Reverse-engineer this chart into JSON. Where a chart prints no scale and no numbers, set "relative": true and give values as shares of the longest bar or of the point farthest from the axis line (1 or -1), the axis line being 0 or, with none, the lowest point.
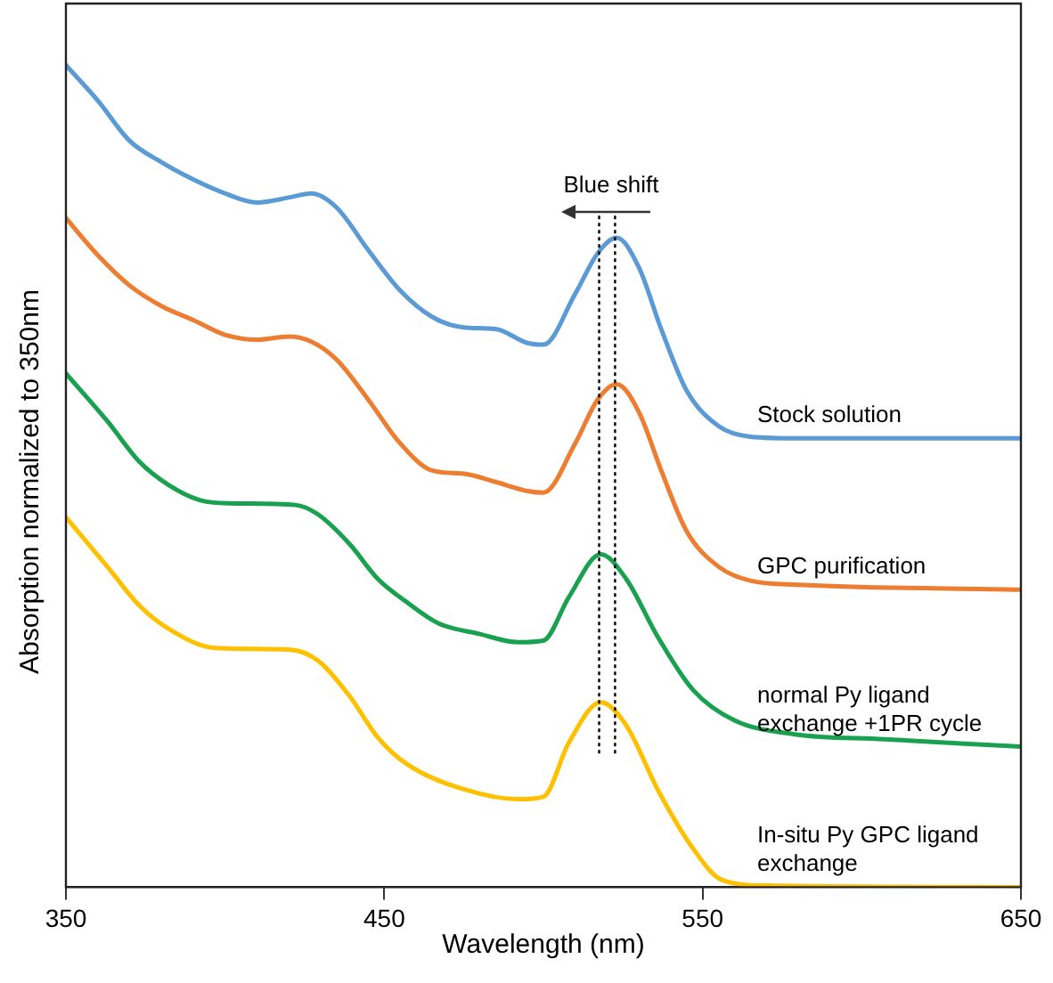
{
  "chart_data": {
    "type": "line",
    "xlabel": "Wavelength (nm)",
    "ylabel": "Absorption normalized to 350nm",
    "relative": true,
    "xlim": [
      350,
      650
    ],
    "xticks": [
      350,
      450,
      550,
      650
    ],
    "grid": false,
    "legend": false,
    "marker": "none",
    "line_style": "solid",
    "annotations": [
      "Blue shift"
    ],
    "ref_lines": [
      {
        "axis": "x",
        "value": 517.5,
        "color": "#000000",
        "line_style": "dotted"
      },
      {
        "axis": "x",
        "value": 522.5,
        "color": "#000000",
        "line_style": "dotted"
      }
    ],
    "series": [
      {
        "name": "Stock solution",
        "color": "#5b9bd5",
        "x": [
          350,
          360,
          370,
          380,
          390,
          400,
          410,
          420,
          427,
          435,
          445,
          455,
          465,
          475,
          485,
          495,
          500,
          510,
          517,
          523,
          530,
          537,
          545,
          555,
          565,
          580,
          650
        ],
        "values": [
          1.0,
          0.957,
          0.908,
          0.882,
          0.861,
          0.844,
          0.833,
          0.839,
          0.844,
          0.827,
          0.775,
          0.726,
          0.694,
          0.681,
          0.679,
          0.662,
          0.66,
          0.722,
          0.771,
          0.79,
          0.754,
          0.679,
          0.604,
          0.561,
          0.548,
          0.546,
          0.546
        ]
      },
      {
        "name": "GPC purification",
        "color": "#ed7d31",
        "x": [
          350,
          360,
          370,
          380,
          390,
          400,
          410,
          420,
          427,
          435,
          445,
          455,
          465,
          475,
          485,
          495,
          500,
          510,
          517,
          523,
          530,
          537,
          545,
          555,
          565,
          580,
          650
        ],
        "values": [
          0.814,
          0.769,
          0.732,
          0.707,
          0.69,
          0.672,
          0.666,
          0.67,
          0.664,
          0.642,
          0.593,
          0.54,
          0.507,
          0.503,
          0.493,
          0.482,
          0.48,
          0.54,
          0.593,
          0.612,
          0.578,
          0.507,
          0.433,
          0.39,
          0.373,
          0.368,
          0.362
        ]
      },
      {
        "name": "normal Py ligand exchange +1PR cycle",
        "color": "#1aa150",
        "x": [
          350,
          363,
          373,
          382,
          392,
          401,
          422,
          429,
          439,
          448,
          457,
          467,
          480,
          492,
          500,
          508,
          518,
          526,
          536,
          547,
          560,
          579,
          607,
          650
        ],
        "values": [
          0.625,
          0.567,
          0.518,
          0.49,
          0.471,
          0.467,
          0.465,
          0.454,
          0.418,
          0.375,
          0.347,
          0.321,
          0.308,
          0.298,
          0.3,
          0.353,
          0.405,
          0.375,
          0.304,
          0.24,
          0.203,
          0.186,
          0.18,
          0.171
        ]
      },
      {
        "name": "In-situ Py GPC ligand exchange",
        "color": "#ffc000",
        "x": [
          350,
          363,
          373,
          382,
          397,
          420,
          429,
          439,
          448,
          457,
          476,
          492,
          500,
          508,
          518,
          526,
          536,
          547,
          556,
          570,
          650
        ],
        "values": [
          0.45,
          0.39,
          0.343,
          0.315,
          0.291,
          0.289,
          0.276,
          0.233,
          0.182,
          0.15,
          0.118,
          0.107,
          0.11,
          0.176,
          0.225,
          0.197,
          0.118,
          0.047,
          0.009,
          0.002,
          0.0
        ]
      }
    ]
  }
}
